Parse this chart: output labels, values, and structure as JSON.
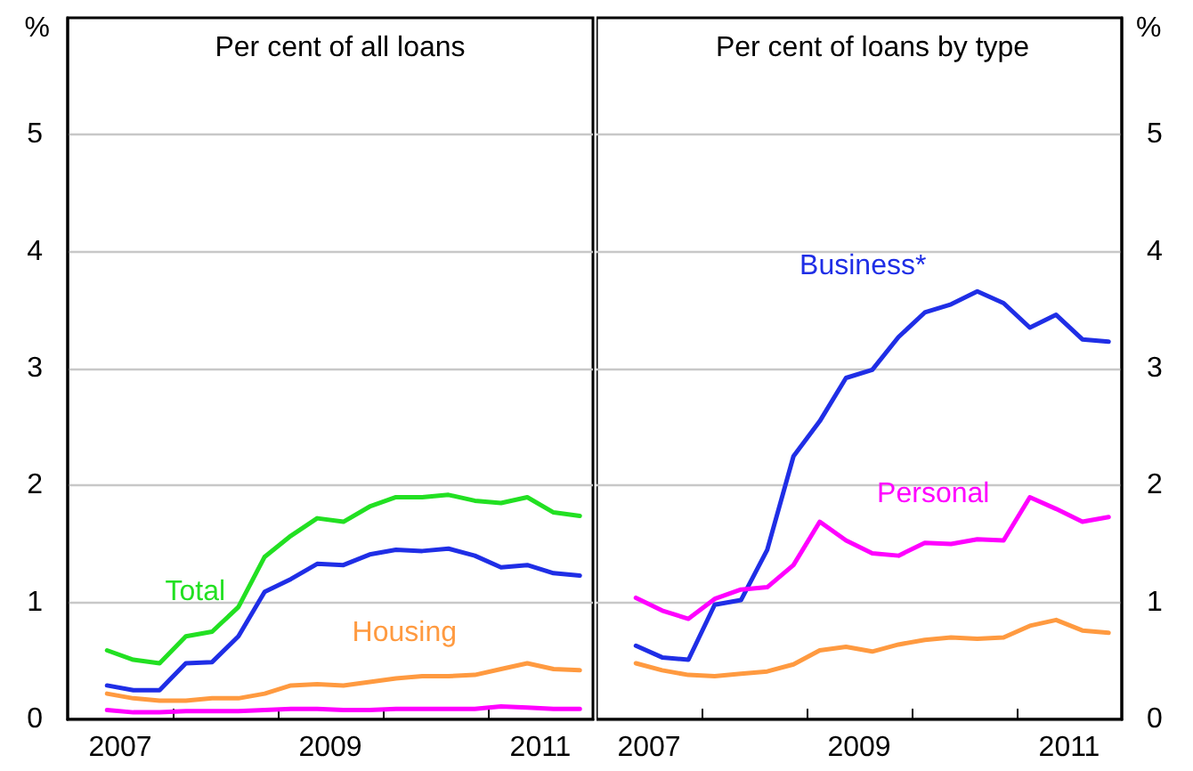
{
  "chart_data": [
    {
      "type": "line",
      "title": "Per cent of all loans",
      "ylabel": "%",
      "x": [
        2007.375,
        2007.625,
        2007.875,
        2008.125,
        2008.375,
        2008.625,
        2008.875,
        2009.125,
        2009.375,
        2009.625,
        2009.875,
        2010.125,
        2010.375,
        2010.625,
        2010.875,
        2011.125,
        2011.375,
        2011.625,
        2011.875
      ],
      "series": [
        {
          "name": "Total",
          "color": "#22e022",
          "values": [
            0.59,
            0.51,
            0.48,
            0.71,
            0.75,
            0.96,
            1.39,
            1.57,
            1.72,
            1.69,
            1.82,
            1.9,
            1.9,
            1.92,
            1.87,
            1.85,
            1.9,
            1.77,
            1.74
          ]
        },
        {
          "color": "#1f2ee6",
          "values": [
            0.29,
            0.25,
            0.25,
            0.48,
            0.49,
            0.71,
            1.09,
            1.2,
            1.33,
            1.32,
            1.41,
            1.45,
            1.44,
            1.46,
            1.4,
            1.3,
            1.32,
            1.25,
            1.23
          ]
        },
        {
          "name": "Housing",
          "color": "#ff9a40",
          "values": [
            0.22,
            0.18,
            0.16,
            0.16,
            0.18,
            0.18,
            0.22,
            0.29,
            0.3,
            0.29,
            0.32,
            0.35,
            0.37,
            0.37,
            0.38,
            0.43,
            0.48,
            0.43,
            0.42
          ]
        },
        {
          "color": "#ff00ff",
          "values": [
            0.08,
            0.06,
            0.06,
            0.07,
            0.07,
            0.07,
            0.08,
            0.09,
            0.09,
            0.08,
            0.08,
            0.09,
            0.09,
            0.09,
            0.09,
            0.11,
            0.1,
            0.09,
            0.09
          ]
        }
      ],
      "xlim": [
        2007,
        2012
      ],
      "xticks": [
        {
          "value": 2007.5,
          "label": "2007"
        },
        {
          "value": 2008,
          "label": null
        },
        {
          "value": 2009,
          "label": null
        },
        {
          "value": 2009.5,
          "label": "2009"
        },
        {
          "value": 2010,
          "label": null
        },
        {
          "value": 2011,
          "label": null
        },
        {
          "value": 2011.5,
          "label": "2011"
        }
      ],
      "ylim": [
        0,
        6
      ],
      "yticks": [
        0,
        1,
        2,
        3,
        4,
        5
      ],
      "grid": "y",
      "legend": false,
      "marker": "none",
      "line_style": "solid"
    },
    {
      "type": "line",
      "title": "Per cent of loans by type",
      "ylabel": "%",
      "x": [
        2007.375,
        2007.625,
        2007.875,
        2008.125,
        2008.375,
        2008.625,
        2008.875,
        2009.125,
        2009.375,
        2009.625,
        2009.875,
        2010.125,
        2010.375,
        2010.625,
        2010.875,
        2011.125,
        2011.375,
        2011.625,
        2011.875
      ],
      "series": [
        {
          "name": "Business*",
          "color": "#1f2ee6",
          "values": [
            0.63,
            0.53,
            0.51,
            0.98,
            1.02,
            1.45,
            2.25,
            2.55,
            2.92,
            2.99,
            3.27,
            3.48,
            3.55,
            3.66,
            3.56,
            3.35,
            3.46,
            3.25,
            3.23
          ]
        },
        {
          "name": "Personal",
          "color": "#ff00ff",
          "values": [
            1.04,
            0.93,
            0.86,
            1.03,
            1.11,
            1.13,
            1.32,
            1.69,
            1.53,
            1.42,
            1.4,
            1.51,
            1.5,
            1.54,
            1.53,
            1.9,
            1.8,
            1.69,
            1.73
          ]
        },
        {
          "color": "#ff9a40",
          "values": [
            0.48,
            0.42,
            0.38,
            0.37,
            0.39,
            0.41,
            0.47,
            0.59,
            0.62,
            0.58,
            0.64,
            0.68,
            0.7,
            0.69,
            0.7,
            0.8,
            0.85,
            0.76,
            0.74
          ]
        }
      ],
      "xlim": [
        2007,
        2012
      ],
      "xticks": [
        {
          "value": 2007.5,
          "label": "2007"
        },
        {
          "value": 2008,
          "label": null
        },
        {
          "value": 2009,
          "label": null
        },
        {
          "value": 2009.5,
          "label": "2009"
        },
        {
          "value": 2010,
          "label": null
        },
        {
          "value": 2011,
          "label": null
        },
        {
          "value": 2011.5,
          "label": "2011"
        }
      ],
      "ylim": [
        0,
        6
      ],
      "yticks": [
        0,
        1,
        2,
        3,
        4,
        5
      ],
      "grid": "y",
      "legend": false,
      "marker": "none",
      "line_style": "solid"
    }
  ]
}
